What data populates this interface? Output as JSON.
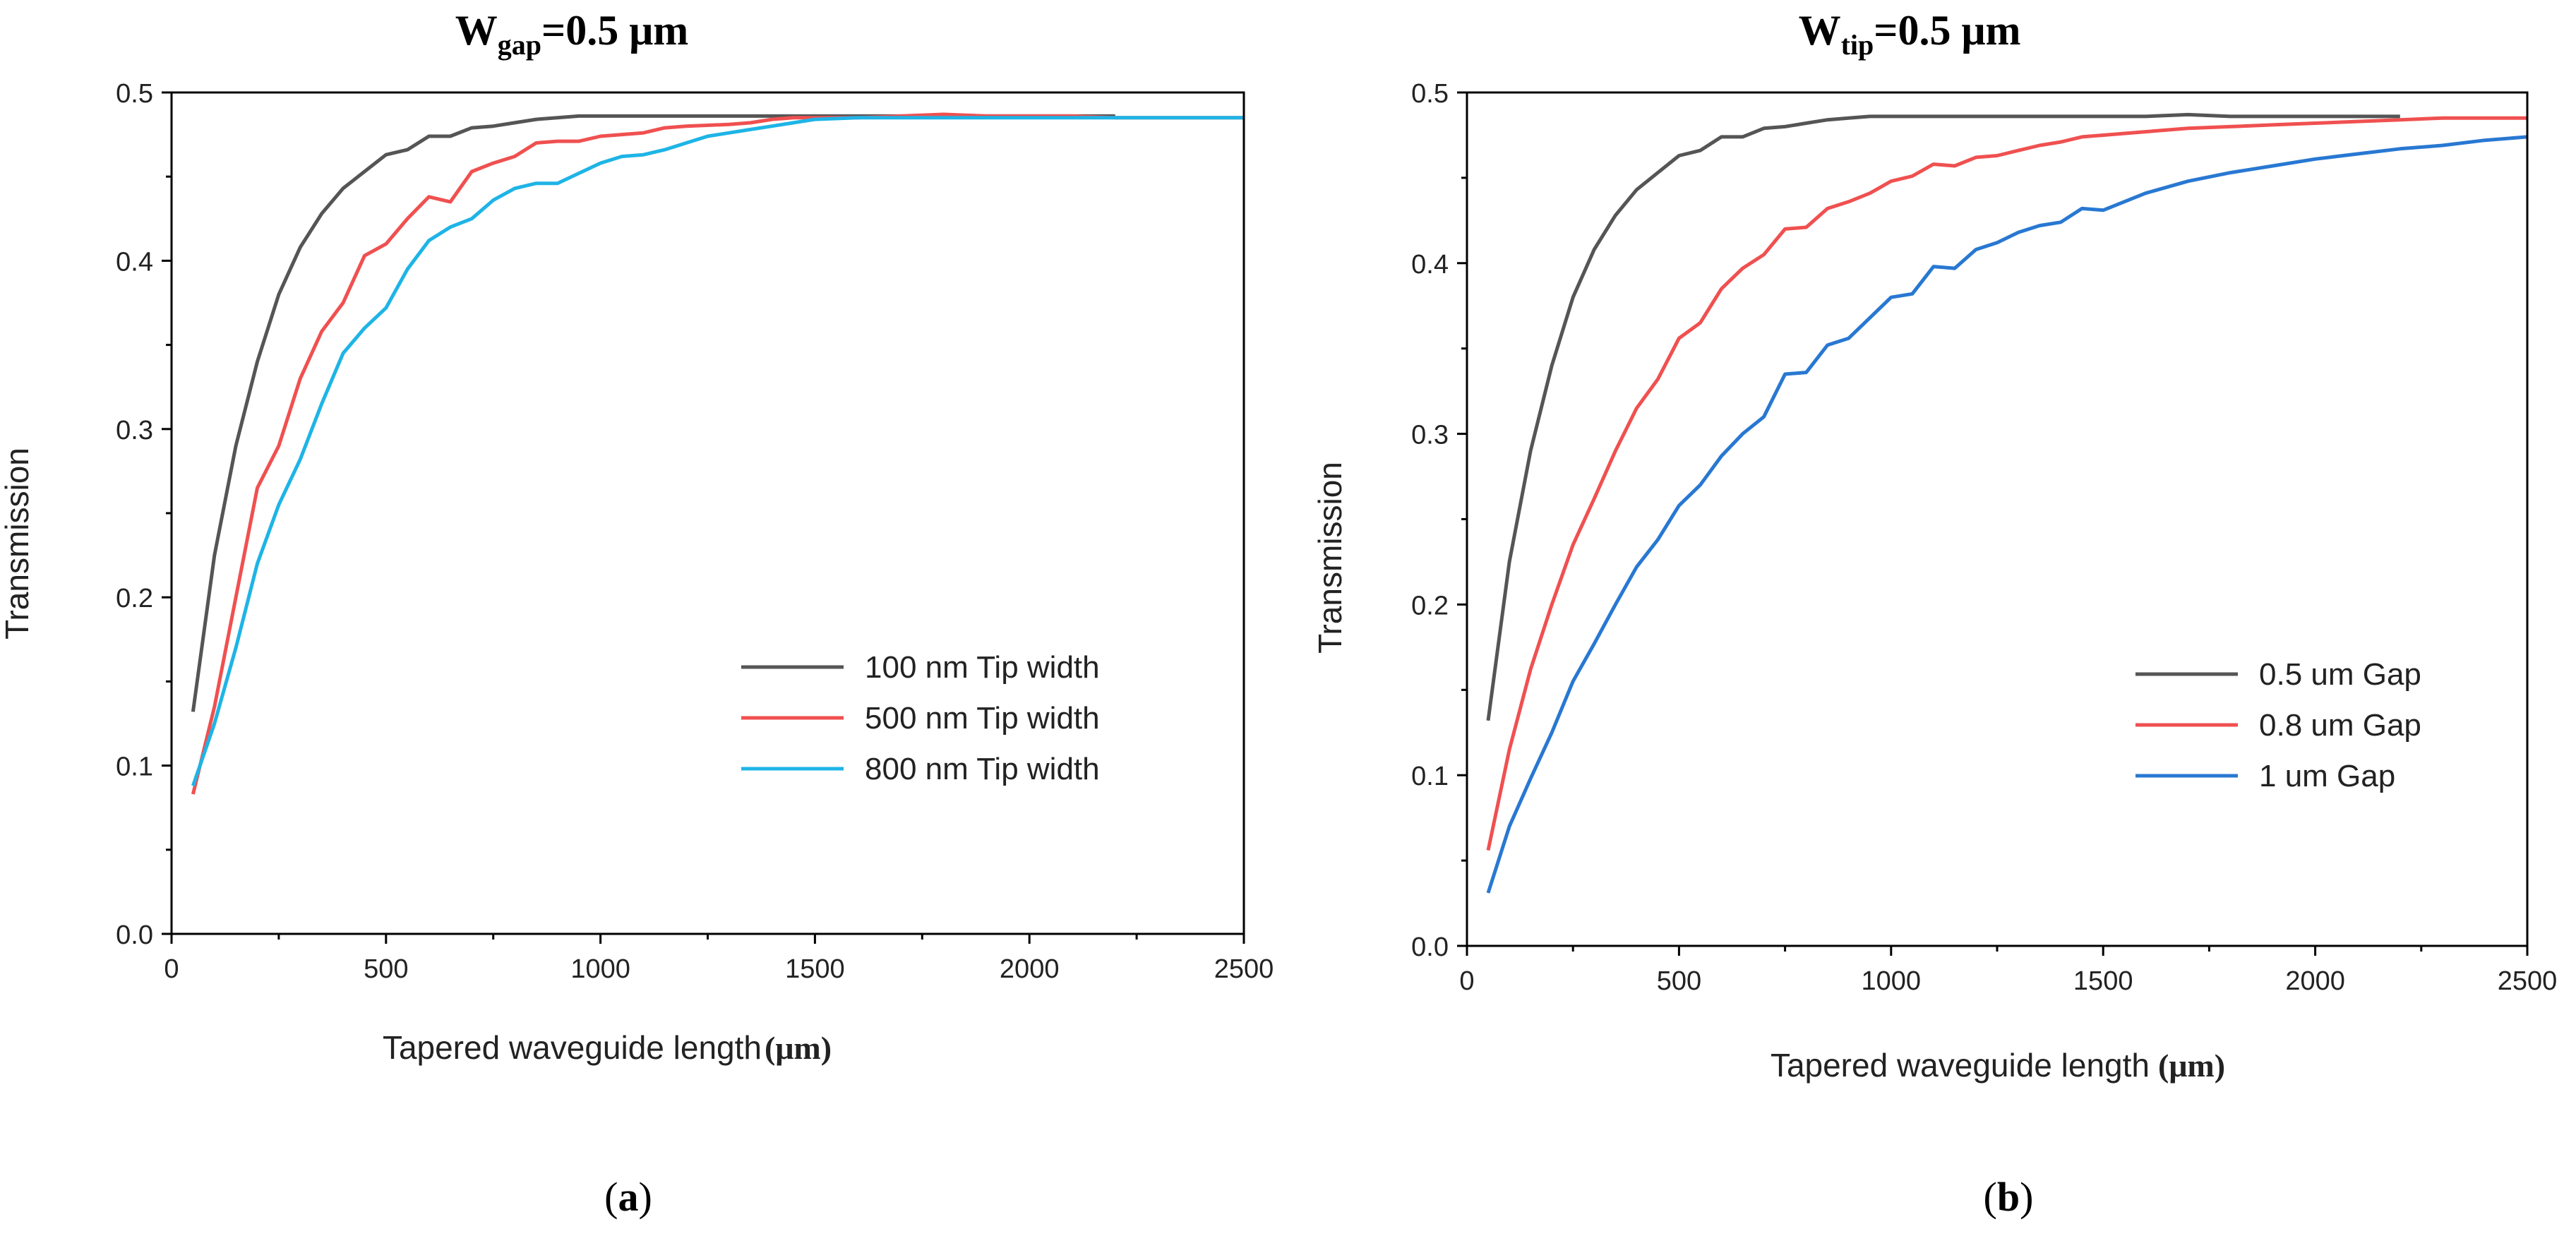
{
  "chart_data": [
    {
      "type": "line",
      "panel_label": "a",
      "title": {
        "main": "W",
        "sub": "gap",
        "rest": "=0.5 μm"
      },
      "xlabel": "Tapered waveguide length",
      "xunit": "(μm)",
      "ylabel": "Transmission",
      "xlim": [
        0,
        2500
      ],
      "ylim": [
        0,
        0.5
      ],
      "xticks": [
        0,
        500,
        1000,
        1500,
        2000,
        2500
      ],
      "xtick_labels": [
        "0",
        "500",
        "1000",
        "1500",
        "2000",
        "2500"
      ],
      "yticks": [
        0,
        0.1,
        0.2,
        0.3,
        0.4,
        0.5
      ],
      "ytick_labels": [
        "0.0",
        "0.1",
        "0.2",
        "0.3",
        "0.4",
        "0.5"
      ],
      "legend_position": "lower-right",
      "series": [
        {
          "name": "100 nm Tip width",
          "color": "#555555",
          "x": [
            50,
            100,
            150,
            200,
            250,
            300,
            350,
            400,
            450,
            500,
            550,
            600,
            650,
            700,
            750,
            800,
            850,
            900,
            950,
            1000,
            1100,
            1200,
            1300,
            1400,
            1500,
            1600,
            1800,
            2000,
            2200
          ],
          "y": [
            0.132,
            0.225,
            0.29,
            0.34,
            0.38,
            0.408,
            0.428,
            0.443,
            0.453,
            0.463,
            0.466,
            0.474,
            0.474,
            0.479,
            0.48,
            0.482,
            0.484,
            0.485,
            0.486,
            0.486,
            0.486,
            0.486,
            0.486,
            0.486,
            0.486,
            0.486,
            0.486,
            0.486,
            0.486
          ]
        },
        {
          "name": "500 nm Tip width",
          "color": "#F05050",
          "x": [
            50,
            100,
            150,
            200,
            250,
            300,
            350,
            400,
            450,
            500,
            550,
            600,
            650,
            700,
            750,
            800,
            850,
            900,
            950,
            1000,
            1050,
            1100,
            1150,
            1200,
            1300,
            1350,
            1400,
            1450,
            1500,
            1600,
            1700,
            1800,
            1900,
            2000,
            2100,
            2200,
            2300,
            2400,
            2500
          ],
          "y": [
            0.083,
            0.135,
            0.2,
            0.265,
            0.29,
            0.33,
            0.358,
            0.375,
            0.403,
            0.41,
            0.425,
            0.438,
            0.435,
            0.453,
            0.458,
            0.462,
            0.47,
            0.471,
            0.471,
            0.474,
            0.475,
            0.476,
            0.479,
            0.48,
            0.481,
            0.482,
            0.484,
            0.485,
            0.485,
            0.485,
            0.486,
            0.487,
            0.486,
            0.486,
            0.486,
            0.485,
            0.485,
            0.485,
            0.485
          ]
        },
        {
          "name": "800 nm Tip width",
          "color": "#1EB4E6",
          "x": [
            50,
            100,
            150,
            200,
            250,
            300,
            350,
            400,
            450,
            500,
            550,
            600,
            650,
            700,
            750,
            800,
            850,
            900,
            950,
            1000,
            1050,
            1100,
            1150,
            1200,
            1250,
            1300,
            1350,
            1400,
            1450,
            1500,
            1600,
            1800,
            2000,
            2200,
            2500
          ],
          "y": [
            0.088,
            0.125,
            0.17,
            0.22,
            0.255,
            0.282,
            0.315,
            0.345,
            0.36,
            0.372,
            0.395,
            0.412,
            0.42,
            0.425,
            0.436,
            0.443,
            0.446,
            0.446,
            0.452,
            0.458,
            0.462,
            0.463,
            0.466,
            0.47,
            0.474,
            0.476,
            0.478,
            0.48,
            0.482,
            0.484,
            0.485,
            0.485,
            0.485,
            0.485,
            0.485
          ]
        }
      ]
    },
    {
      "type": "line",
      "panel_label": "b",
      "title": {
        "main": "W",
        "sub": "tip",
        "rest": "=0.5 μm"
      },
      "xlabel": "Tapered waveguide length",
      "xunit": "(μm)",
      "ylabel": "Transmission",
      "xlim": [
        0,
        2500
      ],
      "ylim": [
        0,
        0.5
      ],
      "xticks": [
        0,
        500,
        1000,
        1500,
        2000,
        2500
      ],
      "xtick_labels": [
        "0",
        "500",
        "1000",
        "1500",
        "2000",
        "2500"
      ],
      "yticks": [
        0,
        0.1,
        0.2,
        0.3,
        0.4,
        0.5
      ],
      "ytick_labels": [
        "0.0",
        "0.1",
        "0.2",
        "0.3",
        "0.4",
        "0.5"
      ],
      "legend_position": "lower-right",
      "series": [
        {
          "name": "0.5 um Gap",
          "color": "#555555",
          "x": [
            50,
            100,
            150,
            200,
            250,
            300,
            350,
            400,
            450,
            500,
            550,
            600,
            650,
            700,
            750,
            800,
            850,
            900,
            950,
            1000,
            1100,
            1200,
            1300,
            1400,
            1500,
            1600,
            1700,
            1800,
            1900,
            2000,
            2100,
            2200
          ],
          "y": [
            0.132,
            0.225,
            0.29,
            0.34,
            0.38,
            0.408,
            0.428,
            0.443,
            0.453,
            0.463,
            0.466,
            0.474,
            0.474,
            0.479,
            0.48,
            0.482,
            0.484,
            0.485,
            0.486,
            0.486,
            0.486,
            0.486,
            0.486,
            0.486,
            0.486,
            0.486,
            0.487,
            0.486,
            0.486,
            0.486,
            0.486,
            0.486
          ]
        },
        {
          "name": "0.8 um Gap",
          "color": "#F05050",
          "x": [
            50,
            100,
            150,
            200,
            250,
            300,
            350,
            400,
            450,
            500,
            550,
            600,
            650,
            700,
            750,
            800,
            850,
            900,
            950,
            1000,
            1050,
            1100,
            1150,
            1200,
            1250,
            1300,
            1350,
            1400,
            1450,
            1500,
            1600,
            1700,
            1800,
            1900,
            2000,
            2100,
            2200,
            2300,
            2400,
            2500
          ],
          "y": [
            0.056,
            0.115,
            0.162,
            0.2,
            0.235,
            0.262,
            0.29,
            0.315,
            0.332,
            0.356,
            0.365,
            0.385,
            0.397,
            0.405,
            0.42,
            0.421,
            0.432,
            0.436,
            0.441,
            0.448,
            0.451,
            0.458,
            0.457,
            0.462,
            0.463,
            0.466,
            0.469,
            0.471,
            0.474,
            0.475,
            0.477,
            0.479,
            0.48,
            0.481,
            0.482,
            0.483,
            0.484,
            0.485,
            0.485,
            0.485
          ]
        },
        {
          "name": "1 um Gap",
          "color": "#2878D2",
          "x": [
            50,
            100,
            150,
            200,
            250,
            300,
            350,
            400,
            450,
            500,
            550,
            600,
            650,
            700,
            750,
            800,
            850,
            900,
            950,
            1000,
            1050,
            1100,
            1150,
            1200,
            1250,
            1300,
            1350,
            1400,
            1450,
            1500,
            1600,
            1700,
            1800,
            1900,
            2000,
            2100,
            2200,
            2300,
            2400,
            2500
          ],
          "y": [
            0.031,
            0.07,
            0.098,
            0.125,
            0.155,
            0.177,
            0.2,
            0.222,
            0.238,
            0.258,
            0.27,
            0.287,
            0.3,
            0.31,
            0.335,
            0.336,
            0.352,
            0.356,
            0.368,
            0.38,
            0.382,
            0.398,
            0.397,
            0.408,
            0.412,
            0.418,
            0.422,
            0.424,
            0.432,
            0.431,
            0.441,
            0.448,
            0.453,
            0.457,
            0.461,
            0.464,
            0.467,
            0.469,
            0.472,
            0.474
          ]
        }
      ]
    }
  ]
}
